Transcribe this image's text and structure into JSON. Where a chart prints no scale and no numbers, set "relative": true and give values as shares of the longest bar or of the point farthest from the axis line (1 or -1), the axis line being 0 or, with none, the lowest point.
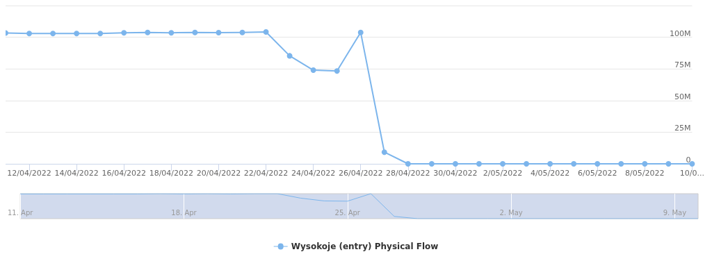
{
  "chart_data": [
    {
      "type": "line",
      "x": [
        "2022-04-11",
        "2022-04-12",
        "2022-04-13",
        "2022-04-14",
        "2022-04-15",
        "2022-04-16",
        "2022-04-17",
        "2022-04-18",
        "2022-04-19",
        "2022-04-20",
        "2022-04-21",
        "2022-04-22",
        "2022-04-23",
        "2022-04-24",
        "2022-04-25",
        "2022-04-26",
        "2022-04-27",
        "2022-04-28",
        "2022-04-29",
        "2022-04-30",
        "2022-05-01",
        "2022-05-02",
        "2022-05-03",
        "2022-05-04",
        "2022-05-05",
        "2022-05-06",
        "2022-05-07",
        "2022-05-08",
        "2022-05-09",
        "2022-05-10"
      ],
      "series": [
        {
          "name": "Wysokoje (entry) Physical Flow",
          "color": "#7cb5ec",
          "values": [
            103.3,
            102.9,
            102.9,
            102.9,
            102.9,
            103.5,
            103.8,
            103.5,
            103.8,
            103.6,
            103.8,
            104.2,
            85.3,
            74.0,
            73.3,
            103.8,
            9.2,
            0,
            0,
            0,
            0,
            0,
            0,
            0,
            0,
            0,
            0,
            0,
            0,
            0
          ]
        }
      ],
      "xlim": [
        "2022-04-11",
        "2022-05-10"
      ],
      "xticks": [
        {
          "value": "2022-04-12",
          "label": "12/04/2022"
        },
        {
          "value": "2022-04-14",
          "label": "14/04/2022"
        },
        {
          "value": "2022-04-16",
          "label": "16/04/2022"
        },
        {
          "value": "2022-04-18",
          "label": "18/04/2022"
        },
        {
          "value": "2022-04-20",
          "label": "20/04/2022"
        },
        {
          "value": "2022-04-22",
          "label": "22/04/2022"
        },
        {
          "value": "2022-04-24",
          "label": "24/04/2022"
        },
        {
          "value": "2022-04-26",
          "label": "26/04/2022"
        },
        {
          "value": "2022-04-28",
          "label": "28/04/2022"
        },
        {
          "value": "2022-04-30",
          "label": "30/04/2022"
        },
        {
          "value": "2022-05-02",
          "label": "2/05/2022"
        },
        {
          "value": "2022-05-04",
          "label": "4/05/2022"
        },
        {
          "value": "2022-05-06",
          "label": "6/05/2022"
        },
        {
          "value": "2022-05-08",
          "label": "8/05/2022"
        },
        {
          "value": "2022-05-10",
          "label": "10/0..."
        }
      ],
      "ylim": [
        0,
        125
      ],
      "yticks": [
        {
          "value": 0,
          "label": "0"
        },
        {
          "value": 25,
          "label": "25M"
        },
        {
          "value": 50,
          "label": "50M"
        },
        {
          "value": 75,
          "label": "75M"
        },
        {
          "value": 100,
          "label": "100M"
        },
        {
          "value": 125,
          "label": null
        }
      ],
      "grid": "y",
      "legend": "bottom",
      "marker": "circle",
      "line_style": "solid"
    },
    {
      "type": "line",
      "relative": true,
      "x": [
        "2022-04-11",
        "2022-04-12",
        "2022-04-13",
        "2022-04-14",
        "2022-04-15",
        "2022-04-16",
        "2022-04-17",
        "2022-04-18",
        "2022-04-19",
        "2022-04-20",
        "2022-04-21",
        "2022-04-22",
        "2022-04-23",
        "2022-04-24",
        "2022-04-25",
        "2022-04-26",
        "2022-04-27",
        "2022-04-28",
        "2022-04-29",
        "2022-04-30",
        "2022-05-01",
        "2022-05-02",
        "2022-05-03",
        "2022-05-04",
        "2022-05-05",
        "2022-05-06",
        "2022-05-07",
        "2022-05-08",
        "2022-05-09",
        "2022-05-10"
      ],
      "series": [
        {
          "color": "#7cb5ec",
          "values": [
            0.99,
            0.99,
            0.99,
            0.99,
            0.99,
            0.99,
            1,
            0.99,
            1,
            0.99,
            1,
            1,
            0.82,
            0.71,
            0.7,
            1,
            0.09,
            0,
            0,
            0,
            0,
            0,
            0,
            0,
            0,
            0,
            0,
            0,
            0,
            0
          ]
        }
      ],
      "xlim": [
        "2022-04-11",
        "2022-05-10"
      ],
      "xticks": [
        {
          "value": "2022-04-11",
          "label": "11. Apr"
        },
        {
          "value": "2022-04-18",
          "label": "18. Apr"
        },
        {
          "value": "2022-04-25",
          "label": "25. Apr"
        },
        {
          "value": "2022-05-02",
          "label": "2. May"
        },
        {
          "value": "2022-05-09",
          "label": "9. May"
        }
      ],
      "grid": "x",
      "marker": "none"
    }
  ]
}
